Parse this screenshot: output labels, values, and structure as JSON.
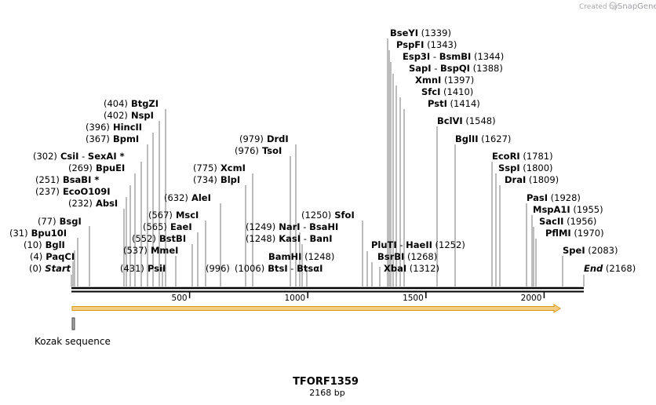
{
  "brand": {
    "created_by": "Created by",
    "app": "SnapGene"
  },
  "map": {
    "name": "TFORF1359",
    "length_label": "2168 bp",
    "length": 2168,
    "ticks": [
      500,
      1000,
      1500,
      2000
    ],
    "feature": {
      "name": "Kozak sequence"
    }
  },
  "sites": [
    {
      "parts": [
        "(0)",
        "Start"
      ],
      "kind": "marker"
    },
    {
      "parts": [
        "(4)",
        "PaqCI"
      ]
    },
    {
      "parts": [
        "(10)",
        "BglI"
      ]
    },
    {
      "parts": [
        "(31)",
        "Bpu10I"
      ]
    },
    {
      "parts": [
        "(77)",
        "BsgI"
      ]
    },
    {
      "parts": [
        "(232)",
        "AbsI"
      ]
    },
    {
      "parts": [
        "(237)",
        "EcoO109I"
      ]
    },
    {
      "parts": [
        "(251)",
        "BsaBI *"
      ]
    },
    {
      "parts": [
        "(269)",
        "BpuEI"
      ]
    },
    {
      "parts": [
        "(302)",
        "CsiI",
        "-",
        "SexAI *"
      ]
    },
    {
      "parts": [
        "(367)",
        "BpmI"
      ]
    },
    {
      "parts": [
        "(396)",
        "HincII"
      ]
    },
    {
      "parts": [
        "(402)",
        "NspI"
      ]
    },
    {
      "parts": [
        "(404)",
        "BtgZI"
      ]
    },
    {
      "parts": [
        "(431)",
        "PsiI"
      ]
    },
    {
      "parts": [
        "(537)",
        "MmeI"
      ]
    },
    {
      "parts": [
        "(552)",
        "BstBI"
      ]
    },
    {
      "parts": [
        "(565)",
        "EaeI"
      ]
    },
    {
      "parts": [
        "(567)",
        "MscI"
      ]
    },
    {
      "parts": [
        "(632)",
        "AleI"
      ]
    },
    {
      "parts": [
        "(734)",
        "BlpI"
      ]
    },
    {
      "parts": [
        "(775)",
        "XcmI"
      ]
    },
    {
      "parts": [
        "(996)"
      ]
    },
    {
      "parts": [
        "(976)",
        "TsoI"
      ]
    },
    {
      "parts": [
        "(979)",
        "DrdI"
      ]
    },
    {
      "parts": [
        "(1006)",
        "BtsI",
        "-",
        "BtsαI"
      ]
    },
    {
      "parts": [
        "BamHI",
        "(1248)"
      ]
    },
    {
      "parts": [
        "(1248)",
        "KasI",
        "-",
        "BanI"
      ]
    },
    {
      "parts": [
        "(1249)",
        "NarI",
        "-",
        "BsaHI"
      ]
    },
    {
      "parts": [
        "(1250)",
        "SfoI"
      ]
    },
    {
      "parts": [
        "PluTI",
        "-",
        "HaeII",
        "(1252)"
      ]
    },
    {
      "parts": [
        "BsrBI",
        "(1268)"
      ]
    },
    {
      "parts": [
        "XbaI",
        "(1312)"
      ]
    },
    {
      "parts": [
        "BseYI",
        "(1339)"
      ]
    },
    {
      "parts": [
        "PspFI",
        "(1343)"
      ]
    },
    {
      "parts": [
        "Esp3I",
        "-",
        "BsmBI",
        "(1344)"
      ]
    },
    {
      "parts": [
        "SapI",
        "-",
        "BspQI",
        "(1388)"
      ]
    },
    {
      "parts": [
        "XmnI",
        "(1397)"
      ]
    },
    {
      "parts": [
        "SfcI",
        "(1410)"
      ]
    },
    {
      "parts": [
        "PstI",
        "(1414)"
      ]
    },
    {
      "parts": [
        "BclVI",
        "(1548)"
      ]
    },
    {
      "parts": [
        "BglII",
        "(1627)"
      ]
    },
    {
      "parts": [
        "EcoRI",
        "(1781)"
      ]
    },
    {
      "parts": [
        "SspI",
        "(1800)"
      ]
    },
    {
      "parts": [
        "DraI",
        "(1809)"
      ]
    },
    {
      "parts": [
        "PasI",
        "(1928)"
      ]
    },
    {
      "parts": [
        "MspA1I",
        "(1955)"
      ]
    },
    {
      "parts": [
        "SacII",
        "(1956)"
      ]
    },
    {
      "parts": [
        "PflMI",
        "(1970)"
      ]
    },
    {
      "parts": [
        "SpeI",
        "(2083)"
      ]
    },
    {
      "parts": [
        "End",
        "(2168)"
      ],
      "kind": "marker"
    }
  ],
  "colors": {
    "feature_fill": "#f3cd86",
    "feature_stroke": "#d99a12"
  }
}
